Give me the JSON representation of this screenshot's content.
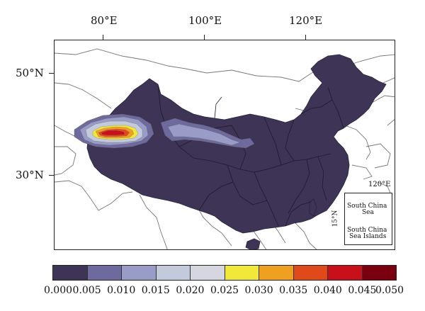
{
  "axes": {
    "top": [
      "80°E",
      "100°E",
      "120°E"
    ],
    "left": [
      "50°N",
      "30°N"
    ]
  },
  "inset": {
    "lon_label": "120°E",
    "lat_label": "15°N",
    "sea_label_line1": "South China",
    "sea_label_line2": "Sea",
    "islands_label_line1": "South China",
    "islands_label_line2": "Sea Islands"
  },
  "colorbar": {
    "labels": [
      "0.000",
      "0.005",
      "0.010",
      "0.015",
      "0.020",
      "0.025",
      "0.030",
      "0.035",
      "0.040",
      "0.045",
      "0.050"
    ],
    "colors": [
      "#3d3456",
      "#6e6a9e",
      "#9a9cc8",
      "#c3cadb",
      "#d6d6e0",
      "#f2e83a",
      "#f0a020",
      "#e04a1a",
      "#c8101a",
      "#7a0010"
    ]
  },
  "colors": {
    "land_fill": "#3d3456",
    "border_line": "#777777"
  }
}
